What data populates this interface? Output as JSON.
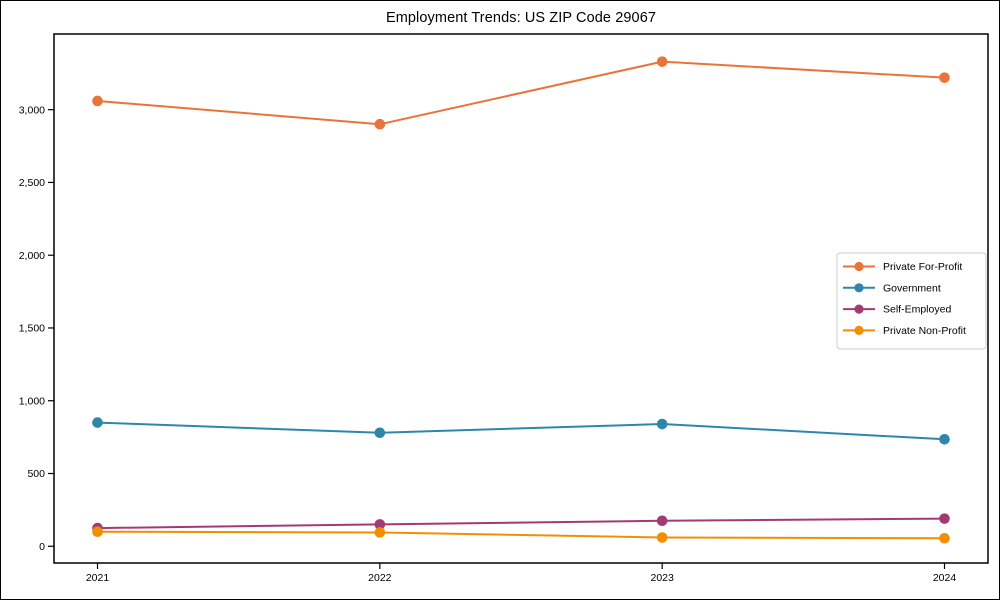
{
  "figure": {
    "title": "Employment Trends: US ZIP Code 29067"
  },
  "chart_data": {
    "type": "line",
    "title": "Employment Trends: US ZIP Code 29067",
    "categories": [
      "2021",
      "2022",
      "2023",
      "2024"
    ],
    "series": [
      {
        "name": "Private For-Profit",
        "color": "#E8743B",
        "values": [
          3060,
          2900,
          3330,
          3220
        ]
      },
      {
        "name": "Government",
        "color": "#2E86AB",
        "values": [
          850,
          780,
          840,
          735
        ]
      },
      {
        "name": "Self-Employed",
        "color": "#A23B72",
        "values": [
          125,
          150,
          175,
          190
        ]
      },
      {
        "name": "Private Non-Profit",
        "color": "#F18F01",
        "values": [
          100,
          95,
          60,
          55
        ]
      }
    ],
    "xlabel": "",
    "ylabel": "",
    "ylim": [
      -115,
      3520
    ],
    "yticks": [
      0,
      500,
      1000,
      1500,
      2000,
      2500,
      3000
    ],
    "grid": false,
    "legend_position": "center right",
    "marker": "circle",
    "frame_color": "#000000",
    "legend_border_color": "#cccccc"
  }
}
